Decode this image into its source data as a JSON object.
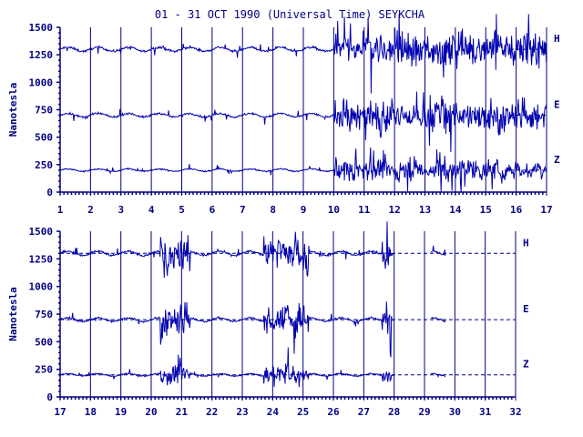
{
  "chart_data": {
    "type": "line",
    "title": "01 - 31 OCT 1990 (Universal Time) SEYKCHA",
    "ylabel": "Nanotesla",
    "y_ticks": [
      0,
      250,
      500,
      750,
      1000,
      1250,
      1500
    ],
    "ylim": [
      0,
      1500
    ],
    "series_names": [
      "H",
      "E",
      "Z"
    ],
    "baselines": {
      "H": 1300,
      "E": 700,
      "Z": 200
    },
    "colors": {
      "trace": "#0000b0",
      "axis": "#000080",
      "background": "#ffffff"
    },
    "panels": [
      {
        "xlim": [
          1,
          17
        ],
        "x_ticks": [
          1,
          2,
          3,
          4,
          5,
          6,
          7,
          8,
          9,
          10,
          11,
          12,
          13,
          14,
          15,
          16,
          17
        ],
        "baseline_lines_dashed": false,
        "disturbed_days": [
          [
            10,
            17
          ]
        ],
        "data_gaps": []
      },
      {
        "xlim": [
          17,
          32
        ],
        "x_ticks": [
          17,
          18,
          19,
          20,
          21,
          22,
          23,
          24,
          25,
          26,
          27,
          28,
          29,
          30,
          31,
          32
        ],
        "baseline_lines_dashed": true,
        "disturbed_days": [
          [
            20.3,
            21.3
          ],
          [
            23.7,
            25.2
          ],
          [
            27.6,
            27.9
          ]
        ],
        "data_gaps": [
          [
            28.0,
            29.2
          ],
          [
            29.7,
            32
          ]
        ]
      }
    ]
  }
}
